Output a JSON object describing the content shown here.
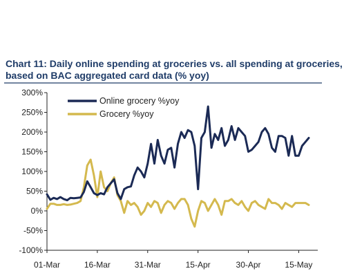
{
  "chart_data": {
    "type": "line",
    "title": "Chart 11: Daily online spending at groceries vs. all spending at groceries,",
    "subtitle": "based on BAC aggregated card data (% yoy)",
    "xlabel": "",
    "ylabel": "",
    "x_tick_labels": [
      "01-Mar",
      "16-Mar",
      "31-Mar",
      "15-Apr",
      "30-Apr",
      "15-May"
    ],
    "y_tick_labels": [
      "300%",
      "250%",
      "200%",
      "150%",
      "100%",
      "50%",
      "0%",
      "-50%",
      "-100%"
    ],
    "ylim": [
      -100,
      300
    ],
    "x_start": "2020-03-01",
    "x_end": "2020-05-18",
    "grid": false,
    "legend_position": "top-left",
    "series": [
      {
        "name": "Online grocery %yoy",
        "color": "#1b2a55",
        "x": [
          "2020-03-01",
          "2020-03-02",
          "2020-03-03",
          "2020-03-04",
          "2020-03-05",
          "2020-03-06",
          "2020-03-07",
          "2020-03-08",
          "2020-03-09",
          "2020-03-10",
          "2020-03-11",
          "2020-03-12",
          "2020-03-13",
          "2020-03-14",
          "2020-03-15",
          "2020-03-16",
          "2020-03-17",
          "2020-03-18",
          "2020-03-19",
          "2020-03-20",
          "2020-03-21",
          "2020-03-22",
          "2020-03-23",
          "2020-03-24",
          "2020-03-25",
          "2020-03-26",
          "2020-03-27",
          "2020-03-28",
          "2020-03-29",
          "2020-03-30",
          "2020-03-31",
          "2020-04-01",
          "2020-04-02",
          "2020-04-03",
          "2020-04-04",
          "2020-04-05",
          "2020-04-06",
          "2020-04-07",
          "2020-04-08",
          "2020-04-09",
          "2020-04-10",
          "2020-04-11",
          "2020-04-12",
          "2020-04-13",
          "2020-04-14",
          "2020-04-15",
          "2020-04-16",
          "2020-04-17",
          "2020-04-18",
          "2020-04-19",
          "2020-04-20",
          "2020-04-21",
          "2020-04-22",
          "2020-04-23",
          "2020-04-24",
          "2020-04-25",
          "2020-04-26",
          "2020-04-27",
          "2020-04-28",
          "2020-04-29",
          "2020-04-30",
          "2020-05-01",
          "2020-05-02",
          "2020-05-03",
          "2020-05-04",
          "2020-05-05",
          "2020-05-06",
          "2020-05-07",
          "2020-05-08",
          "2020-05-09",
          "2020-05-10",
          "2020-05-11",
          "2020-05-12",
          "2020-05-13",
          "2020-05-14",
          "2020-05-15",
          "2020-05-16",
          "2020-05-17",
          "2020-05-18"
        ],
        "values": [
          42,
          28,
          33,
          30,
          35,
          30,
          27,
          33,
          32,
          33,
          34,
          48,
          75,
          60,
          45,
          40,
          45,
          42,
          60,
          70,
          80,
          45,
          30,
          55,
          60,
          62,
          90,
          110,
          100,
          85,
          120,
          170,
          120,
          180,
          140,
          120,
          155,
          160,
          110,
          170,
          200,
          185,
          205,
          200,
          165,
          55,
          185,
          200,
          265,
          160,
          195,
          180,
          210,
          165,
          180,
          215,
          180,
          210,
          200,
          190,
          150,
          155,
          165,
          175,
          200,
          210,
          195,
          160,
          150,
          190,
          190,
          185,
          140,
          190,
          140,
          140,
          165,
          175,
          185
        ]
      },
      {
        "name": "Grocery %yoy",
        "color": "#d4b94e",
        "x": [
          "2020-03-01",
          "2020-03-02",
          "2020-03-03",
          "2020-03-04",
          "2020-03-05",
          "2020-03-06",
          "2020-03-07",
          "2020-03-08",
          "2020-03-09",
          "2020-03-10",
          "2020-03-11",
          "2020-03-12",
          "2020-03-13",
          "2020-03-14",
          "2020-03-15",
          "2020-03-16",
          "2020-03-17",
          "2020-03-18",
          "2020-03-19",
          "2020-03-20",
          "2020-03-21",
          "2020-03-22",
          "2020-03-23",
          "2020-03-24",
          "2020-03-25",
          "2020-03-26",
          "2020-03-27",
          "2020-03-28",
          "2020-03-29",
          "2020-03-30",
          "2020-03-31",
          "2020-04-01",
          "2020-04-02",
          "2020-04-03",
          "2020-04-04",
          "2020-04-05",
          "2020-04-06",
          "2020-04-07",
          "2020-04-08",
          "2020-04-09",
          "2020-04-10",
          "2020-04-11",
          "2020-04-12",
          "2020-04-13",
          "2020-04-14",
          "2020-04-15",
          "2020-04-16",
          "2020-04-17",
          "2020-04-18",
          "2020-04-19",
          "2020-04-20",
          "2020-04-21",
          "2020-04-22",
          "2020-04-23",
          "2020-04-24",
          "2020-04-25",
          "2020-04-26",
          "2020-04-27",
          "2020-04-28",
          "2020-04-29",
          "2020-04-30",
          "2020-05-01",
          "2020-05-02",
          "2020-05-03",
          "2020-05-04",
          "2020-05-05",
          "2020-05-06",
          "2020-05-07",
          "2020-05-08",
          "2020-05-09",
          "2020-05-10",
          "2020-05-11",
          "2020-05-12",
          "2020-05-13",
          "2020-05-14",
          "2020-05-15",
          "2020-05-16",
          "2020-05-17",
          "2020-05-18"
        ],
        "values": [
          5,
          18,
          18,
          15,
          15,
          17,
          15,
          16,
          18,
          20,
          25,
          60,
          115,
          130,
          90,
          35,
          100,
          60,
          50,
          70,
          85,
          40,
          25,
          -5,
          25,
          15,
          20,
          10,
          -10,
          0,
          20,
          10,
          25,
          20,
          -5,
          15,
          25,
          20,
          5,
          20,
          30,
          30,
          15,
          -20,
          -40,
          0,
          25,
          20,
          0,
          15,
          30,
          15,
          -10,
          25,
          25,
          30,
          20,
          15,
          25,
          10,
          0,
          20,
          25,
          15,
          10,
          5,
          30,
          20,
          20,
          15,
          5,
          20,
          15,
          10,
          20,
          20,
          20,
          20,
          15
        ]
      }
    ]
  }
}
